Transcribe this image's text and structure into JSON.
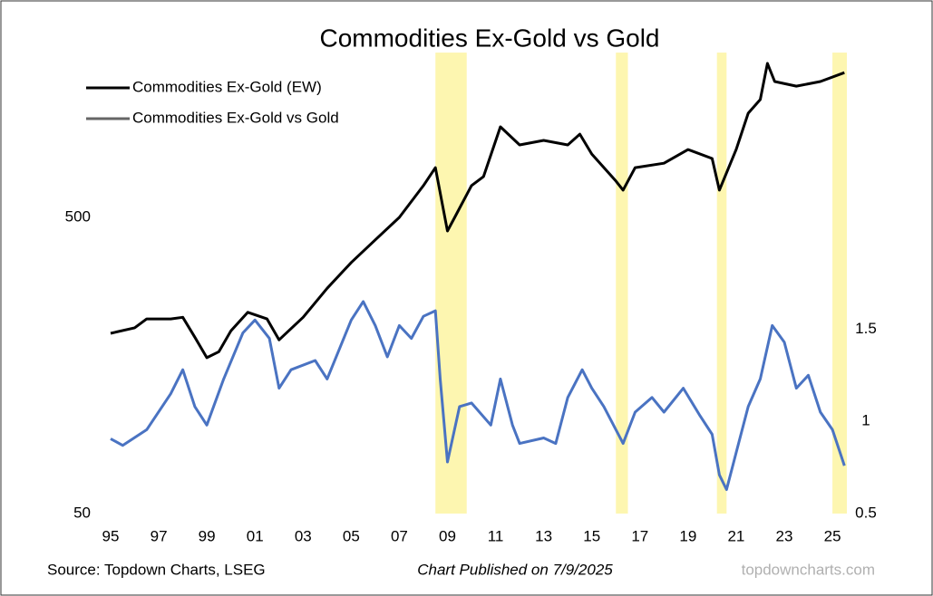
{
  "chart_data": {
    "type": "line",
    "title": "Commodities Ex-Gold vs Gold",
    "xlim": [
      1995,
      2025.6
    ],
    "xticks": [
      {
        "value": 1995,
        "label": "95"
      },
      {
        "value": 1997,
        "label": "97"
      },
      {
        "value": 1999,
        "label": "99"
      },
      {
        "value": 2001,
        "label": "01"
      },
      {
        "value": 2003,
        "label": "03"
      },
      {
        "value": 2005,
        "label": "05"
      },
      {
        "value": 2007,
        "label": "07"
      },
      {
        "value": 2009,
        "label": "09"
      },
      {
        "value": 2011,
        "label": "11"
      },
      {
        "value": 2013,
        "label": "13"
      },
      {
        "value": 2015,
        "label": "15"
      },
      {
        "value": 2017,
        "label": "17"
      },
      {
        "value": 2019,
        "label": "19"
      },
      {
        "value": 2021,
        "label": "21"
      },
      {
        "value": 2023,
        "label": "23"
      },
      {
        "value": 2025,
        "label": "25"
      }
    ],
    "ylim": [
      50,
      1800
    ],
    "yticks": [
      50,
      500
    ],
    "log_scale": true,
    "y2lim": [
      0.5,
      3
    ],
    "y2ticks": [
      0.5,
      1,
      1.5
    ],
    "highlights": [
      [
        2008.5,
        2009.8
      ],
      [
        2016.0,
        2016.5
      ],
      [
        2020.2,
        2020.6
      ],
      [
        2025.0,
        2025.6
      ]
    ],
    "highlight_color": "#fdf6b0",
    "series": [
      {
        "name": "Commodities Ex-Gold (EW)",
        "color": "#000000",
        "x": [
          1995.0,
          1996.0,
          1996.5,
          1997.5,
          1998.0,
          1998.5,
          1999.0,
          1999.5,
          2000.0,
          2000.7,
          2001.5,
          2002.0,
          2003.0,
          2004.0,
          2005.0,
          2006.0,
          2007.0,
          2008.0,
          2008.5,
          2009.0,
          2009.3,
          2010.0,
          2010.5,
          2011.2,
          2012.0,
          2013.0,
          2014.0,
          2014.5,
          2015.0,
          2016.0,
          2016.3,
          2016.8,
          2018.0,
          2019.0,
          2020.0,
          2020.3,
          2021.0,
          2021.5,
          2022.0,
          2022.3,
          2022.6,
          2023.5,
          2024.5,
          2025.5
        ],
        "values": [
          203,
          212,
          227,
          227,
          230,
          197,
          168,
          176,
          207,
          239,
          227,
          193,
          230,
          288,
          352,
          420,
          500,
          640,
          736,
          450,
          500,
          640,
          687,
          1011,
          878,
          910,
          878,
          955,
          818,
          663,
          618,
          736,
          762,
          847,
          790,
          618,
          847,
          1124,
          1250,
          1655,
          1438,
          1387,
          1438,
          1541
        ]
      },
      {
        "name": "Commodities Ex-Gold vs Gold",
        "color": "#4a73c2",
        "axis": "y2",
        "x": [
          1995.0,
          1995.5,
          1996.5,
          1997.5,
          1998.0,
          1998.5,
          1999.0,
          1999.7,
          2000.5,
          2001.0,
          2001.6,
          2002.0,
          2002.5,
          2003.5,
          2004.0,
          2005.0,
          2005.5,
          2006.0,
          2006.5,
          2007.0,
          2007.5,
          2008.0,
          2008.5,
          2008.7,
          2009.0,
          2009.5,
          2010.0,
          2010.8,
          2011.2,
          2011.7,
          2012.0,
          2013.0,
          2013.5,
          2014.0,
          2014.6,
          2015.0,
          2015.5,
          2016.0,
          2016.3,
          2016.8,
          2017.5,
          2018.0,
          2018.8,
          2019.5,
          2020.0,
          2020.3,
          2020.6,
          2021.0,
          2021.5,
          2022.0,
          2022.5,
          2023.0,
          2023.5,
          2024.0,
          2024.5,
          2025.0,
          2025.5
        ],
        "values": [
          0.906,
          0.87,
          0.955,
          1.15,
          1.28,
          1.08,
          0.98,
          1.23,
          1.48,
          1.55,
          1.45,
          1.18,
          1.28,
          1.33,
          1.23,
          1.55,
          1.65,
          1.52,
          1.35,
          1.52,
          1.45,
          1.57,
          1.6,
          1.23,
          0.78,
          1.08,
          1.1,
          0.98,
          1.23,
          0.98,
          0.88,
          0.91,
          0.88,
          1.13,
          1.28,
          1.18,
          1.08,
          0.955,
          0.88,
          1.05,
          1.13,
          1.05,
          1.18,
          1.03,
          0.93,
          0.71,
          0.63,
          0.83,
          1.08,
          1.23,
          1.52,
          1.43,
          1.18,
          1.25,
          1.05,
          0.955,
          0.76
        ]
      }
    ],
    "source": "Source: Topdown Charts, LSEG",
    "note": "Chart Published on 7/9/2025",
    "watermark": "topdowncharts.com"
  }
}
